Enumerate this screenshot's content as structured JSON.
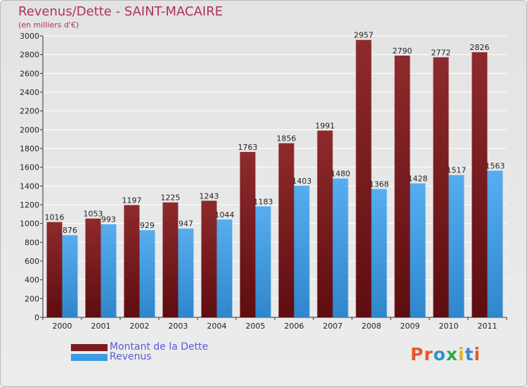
{
  "header": {
    "title": "Revenus/Dette - SAINT-MACAIRE",
    "subtitle": "(en milliers d'€)"
  },
  "colors": {
    "debt": "#7a1c1f",
    "revenue": "#3d9be3",
    "title": "#b03060",
    "legend_text": "#5a5ad8"
  },
  "logo": {
    "text": "Proxiti",
    "letter_colors": [
      "#e8582a",
      "#e8582a",
      "#2d8fd5",
      "#2fa84f",
      "#e8b21c",
      "#2d8fd5",
      "#e8582a"
    ]
  },
  "chart_data": {
    "type": "bar",
    "title": "Revenus/Dette - SAINT-MACAIRE",
    "subtitle": "(en milliers d'€)",
    "categories": [
      "2000",
      "2001",
      "2002",
      "2003",
      "2004",
      "2005",
      "2006",
      "2007",
      "2008",
      "2009",
      "2010",
      "2011"
    ],
    "series": [
      {
        "name": "Montant de la Dette",
        "color": "#7a1c1f",
        "values": [
          1016,
          1053,
          1197,
          1225,
          1243,
          1763,
          1856,
          1991,
          2957,
          2790,
          2772,
          2826
        ]
      },
      {
        "name": "Revenus",
        "color": "#3d9be3",
        "values": [
          876,
          993,
          929,
          947,
          1044,
          1183,
          1403,
          1480,
          1368,
          1428,
          1517,
          1563
        ]
      }
    ],
    "ylim": [
      0,
      3000
    ],
    "yticks": [
      0,
      200,
      400,
      600,
      800,
      1000,
      1200,
      1400,
      1600,
      1800,
      2000,
      2200,
      2400,
      2600,
      2800,
      3000
    ],
    "grid": true,
    "legend": "bottom-left"
  }
}
